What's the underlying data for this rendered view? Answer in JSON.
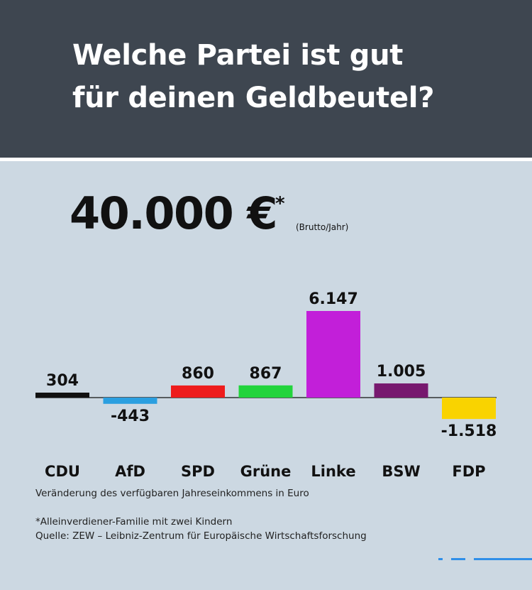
{
  "header": {
    "title_line1": "Welche Partei ist gut",
    "title_line2": "für deinen Geldbeutel?"
  },
  "income": {
    "amount": "40.000 €",
    "asterisk": "*",
    "note": "(Brutto/Jahr)"
  },
  "chart_data": {
    "type": "bar",
    "categories": [
      "CDU",
      "AfD",
      "SPD",
      "Grüne",
      "Linke",
      "BSW",
      "FDP"
    ],
    "values": [
      304,
      -443,
      860,
      867,
      6147,
      1005,
      -1518
    ],
    "value_labels": [
      "304",
      "-443",
      "860",
      "867",
      "6.147",
      "1.005",
      "-1.518"
    ],
    "colors": [
      "#111111",
      "#2a9fe0",
      "#ee1c1c",
      "#22d43c",
      "#c21fd9",
      "#77196f",
      "#f9d300"
    ],
    "xlabel": "Veränderung des verfügbaren Jahreseinkommens in Euro",
    "ylim": [
      -1518,
      6147
    ]
  },
  "footnotes": {
    "line1": "*Alleinverdiener-Familie mit zwei Kindern",
    "line2": "Quelle: ZEW – Leibniz-Zentrum für Europäische Wirtschaftsforschung"
  },
  "colors": {
    "header_bg": "#3e4650",
    "page_bg": "#ccd8e2",
    "accent": "#2f8fe8"
  }
}
